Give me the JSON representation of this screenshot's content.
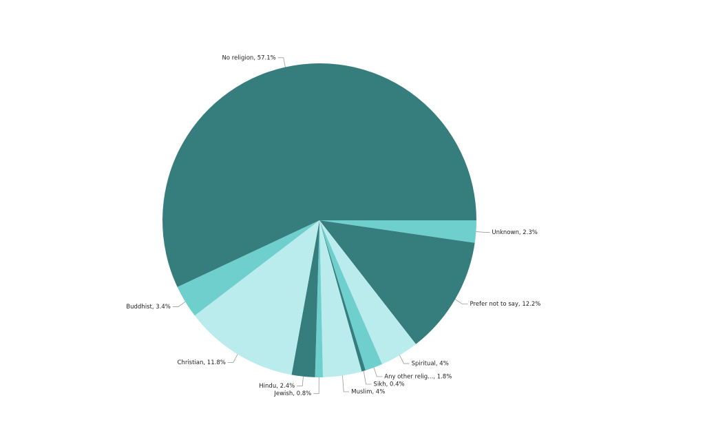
{
  "chart_data": {
    "type": "pie",
    "value_labels": [
      "Unknown, 2.3%",
      "Prefer not to say, 12.2%",
      "Spiritual, 4%",
      "Any other relig..., 1.8%",
      "Sikh, 0.4%",
      "Muslim, 4%",
      "Jewish, 0.8%",
      "Hindu, 2.4%",
      "Christian, 11.8%",
      "Buddhist, 3.4%",
      "No religion, 57.1%"
    ],
    "values": [
      2.3,
      12.2,
      4,
      1.8,
      0.4,
      4,
      0.8,
      2.4,
      11.8,
      3.4,
      57.1
    ],
    "colors": [
      "#6ecfcc",
      "#367e7e",
      "#bbeced",
      "#6ecfcc",
      "#367e7e",
      "#bbeced",
      "#6ecfcc",
      "#367e7e",
      "#bbeced",
      "#6ecfcc",
      "#367e7e"
    ]
  }
}
